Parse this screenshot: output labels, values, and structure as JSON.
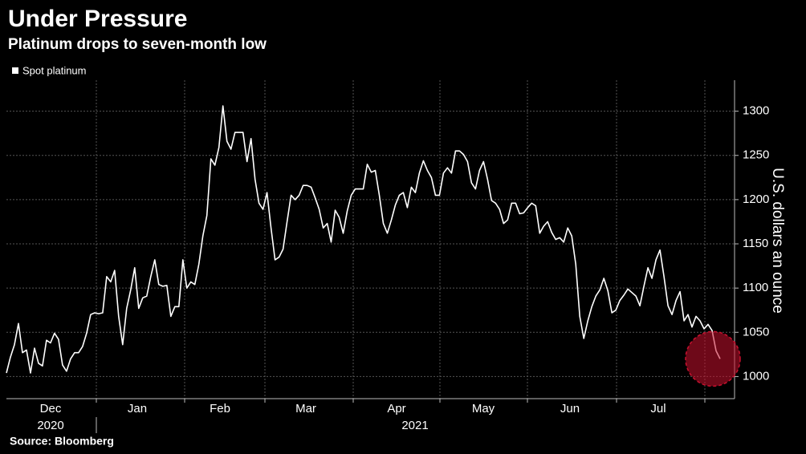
{
  "chart_data": {
    "type": "line",
    "title": "Under Pressure",
    "subtitle": "Platinum drops to seven-month low",
    "source": "Source: Bloomberg",
    "y_axis_label": "U.S. dollars an ounce",
    "months": [
      "Dec",
      "Jan",
      "Feb",
      "Mar",
      "Apr",
      "May",
      "Jun",
      "Jul"
    ],
    "years": [
      "2020",
      "2021"
    ],
    "series": [
      {
        "name": "Spot platinum",
        "color": "#ffffff",
        "values": [
          1004,
          1022,
          1036,
          1060,
          1027,
          1030,
          1004,
          1032,
          1015,
          1012,
          1041,
          1038,
          1049,
          1042,
          1013,
          1006,
          1020,
          1027,
          1027,
          1034,
          1049,
          1070,
          1072,
          1071,
          1072,
          1113,
          1107,
          1120,
          1068,
          1036,
          1077,
          1098,
          1123,
          1077,
          1089,
          1091,
          1113,
          1132,
          1104,
          1102,
          1103,
          1068,
          1079,
          1079,
          1132,
          1100,
          1107,
          1104,
          1127,
          1159,
          1182,
          1246,
          1239,
          1259,
          1306,
          1266,
          1257,
          1276,
          1276,
          1276,
          1243,
          1269,
          1223,
          1196,
          1189,
          1208,
          1168,
          1132,
          1135,
          1144,
          1175,
          1205,
          1200,
          1205,
          1216,
          1216,
          1214,
          1202,
          1189,
          1168,
          1173,
          1152,
          1188,
          1180,
          1162,
          1187,
          1205,
          1212,
          1212,
          1212,
          1240,
          1231,
          1233,
          1205,
          1173,
          1162,
          1177,
          1194,
          1205,
          1208,
          1191,
          1214,
          1208,
          1230,
          1244,
          1233,
          1225,
          1205,
          1205,
          1230,
          1236,
          1230,
          1255,
          1255,
          1251,
          1243,
          1219,
          1212,
          1233,
          1243,
          1223,
          1199,
          1196,
          1189,
          1173,
          1177,
          1196,
          1196,
          1184,
          1185,
          1191,
          1196,
          1193,
          1162,
          1170,
          1175,
          1163,
          1155,
          1157,
          1152,
          1168,
          1159,
          1127,
          1068,
          1043,
          1063,
          1079,
          1091,
          1098,
          1111,
          1097,
          1072,
          1075,
          1086,
          1092,
          1099,
          1095,
          1091,
          1080,
          1102,
          1123,
          1111,
          1132,
          1143,
          1113,
          1080,
          1070,
          1086,
          1096,
          1063,
          1070,
          1056,
          1068,
          1063,
          1054,
          1059,
          1052,
          1029,
          1020
        ]
      }
    ],
    "ylim": [
      975,
      1335
    ],
    "yticks": [
      1000,
      1050,
      1100,
      1150,
      1200,
      1250,
      1300
    ],
    "grid": true,
    "highlight_color": "#c8102e"
  }
}
